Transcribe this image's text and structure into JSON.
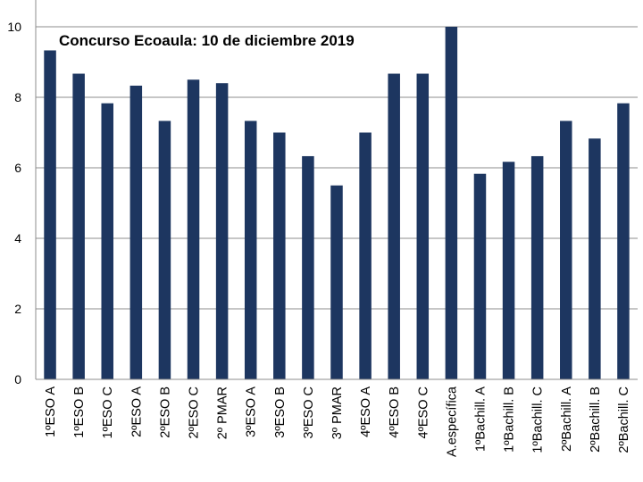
{
  "chart_data": {
    "type": "bar",
    "title": "Concurso Ecoaula: 10 de diciembre 2019",
    "xlabel": "",
    "ylabel": "",
    "categories": [
      "1ºESO A",
      "1ºESO B",
      "1ºESO C",
      "2ºESO A",
      "2ºESO B",
      "2ºESO C",
      "2º PMAR",
      "3ºESO A",
      "3ºESO B",
      "3ºESO C",
      "3º PMAR",
      "4ºESO A",
      "4ºESO B",
      "4ºESO C",
      "A.específica",
      "1ºBachill. A",
      "1ºBachill. B",
      "1ºBachill. C",
      "2ºBachill. A",
      "2ºBachill. B",
      "2ºBachill. C"
    ],
    "series": [
      {
        "values": [
          9.33,
          8.67,
          7.83,
          8.33,
          7.33,
          8.5,
          8.4,
          7.33,
          7.0,
          6.33,
          5.5,
          7.0,
          8.67,
          8.67,
          10.0,
          5.83,
          6.17,
          6.33,
          7.33,
          6.83,
          7.83
        ],
        "color": "#1d3660"
      }
    ],
    "ylim": [
      0,
      10
    ],
    "yticks": [
      0,
      2,
      4,
      6,
      8,
      10
    ],
    "grid": true,
    "legend": "none"
  }
}
